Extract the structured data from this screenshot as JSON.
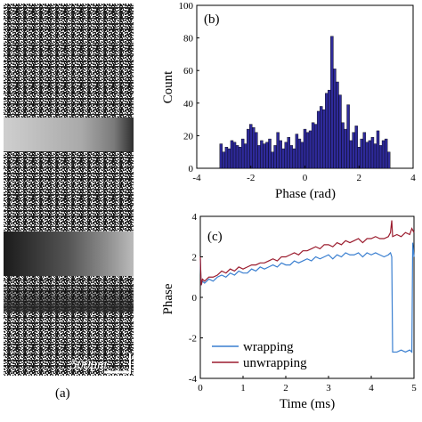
{
  "figure": {
    "panel_a": {
      "tag": "(a)",
      "scale_bar_label": "500μm",
      "description_colors": {
        "speckle_dark": "#1a1a1a",
        "speckle_light": "#e6e6e6"
      }
    }
  },
  "chart_data": [
    {
      "type": "bar",
      "panel": "(b)",
      "xlabel": "Phase (rad)",
      "ylabel": "Count",
      "xlim": [
        -4,
        4
      ],
      "ylim": [
        0,
        100
      ],
      "xticks": [
        "-4",
        "-2",
        "0",
        "2",
        "4"
      ],
      "yticks": [
        "0",
        "20",
        "40",
        "60",
        "80",
        "100"
      ],
      "bar_color": "#2e2a9a",
      "bin_width": 0.1,
      "x": [
        -3.1,
        -3.0,
        -2.9,
        -2.8,
        -2.7,
        -2.6,
        -2.5,
        -2.4,
        -2.3,
        -2.2,
        -2.1,
        -2.0,
        -1.9,
        -1.8,
        -1.7,
        -1.6,
        -1.5,
        -1.4,
        -1.3,
        -1.2,
        -1.1,
        -1.0,
        -0.9,
        -0.8,
        -0.7,
        -0.6,
        -0.5,
        -0.4,
        -0.3,
        -0.2,
        -0.1,
        0.0,
        0.1,
        0.2,
        0.3,
        0.4,
        0.5,
        0.6,
        0.7,
        0.8,
        0.9,
        1.0,
        1.1,
        1.2,
        1.3,
        1.4,
        1.5,
        1.6,
        1.7,
        1.8,
        1.9,
        2.0,
        2.1,
        2.2,
        2.3,
        2.4,
        2.5,
        2.6,
        2.7,
        2.8,
        2.9,
        3.0,
        3.1
      ],
      "values": [
        15,
        10,
        13,
        12,
        17,
        16,
        14,
        13,
        18,
        15,
        24,
        27,
        25,
        22,
        14,
        17,
        15,
        16,
        18,
        10,
        14,
        22,
        17,
        12,
        16,
        19,
        14,
        12,
        21,
        18,
        16,
        24,
        22,
        23,
        28,
        27,
        35,
        38,
        36,
        46,
        48,
        81,
        61,
        53,
        45,
        28,
        24,
        39,
        17,
        22,
        26,
        13,
        18,
        22,
        16,
        17,
        19,
        15,
        23,
        14,
        17,
        18,
        10
      ]
    },
    {
      "type": "line",
      "panel": "(c)",
      "xlabel": "Time (ms)",
      "ylabel": "Phase",
      "xlim": [
        0,
        5
      ],
      "ylim": [
        -4,
        4
      ],
      "xticks": [
        "0",
        "1",
        "2",
        "3",
        "4",
        "5"
      ],
      "yticks": [
        "-4",
        "-2",
        "0",
        "2",
        "4"
      ],
      "legend_position": "bottom-left",
      "series": [
        {
          "name": "wrapping",
          "color": "#3a7fd0",
          "x": [
            0,
            0.02,
            0.05,
            0.1,
            0.2,
            0.3,
            0.4,
            0.5,
            0.6,
            0.7,
            0.8,
            0.9,
            1.0,
            1.1,
            1.2,
            1.3,
            1.4,
            1.5,
            1.6,
            1.7,
            1.8,
            1.9,
            2.0,
            2.1,
            2.2,
            2.3,
            2.4,
            2.5,
            2.6,
            2.7,
            2.8,
            2.9,
            3.0,
            3.1,
            3.2,
            3.3,
            3.4,
            3.5,
            3.6,
            3.7,
            3.8,
            3.9,
            4.0,
            4.1,
            4.2,
            4.3,
            4.4,
            4.45,
            4.48,
            4.5,
            4.6,
            4.7,
            4.8,
            4.9,
            4.95,
            4.97,
            5.0
          ],
          "y": [
            1.9,
            0.6,
            0.8,
            0.7,
            0.9,
            0.8,
            1.0,
            1.1,
            1.0,
            1.2,
            1.1,
            1.3,
            1.2,
            1.2,
            1.4,
            1.3,
            1.5,
            1.4,
            1.5,
            1.6,
            1.5,
            1.7,
            1.6,
            1.6,
            1.8,
            1.7,
            1.8,
            1.9,
            1.8,
            2.0,
            1.9,
            2.0,
            2.1,
            1.9,
            2.1,
            2.0,
            2.2,
            2.1,
            2.1,
            2.2,
            2.0,
            2.2,
            2.1,
            2.2,
            2.1,
            2.0,
            2.1,
            2.2,
            2.0,
            -2.7,
            -2.7,
            -2.6,
            -2.7,
            -2.6,
            -2.7,
            2.7,
            2.0
          ]
        },
        {
          "name": "unwrapping",
          "color": "#9b1c2e",
          "x": [
            0,
            0.02,
            0.05,
            0.1,
            0.2,
            0.3,
            0.4,
            0.5,
            0.6,
            0.7,
            0.8,
            0.9,
            1.0,
            1.1,
            1.2,
            1.3,
            1.4,
            1.5,
            1.6,
            1.7,
            1.8,
            1.9,
            2.0,
            2.1,
            2.2,
            2.3,
            2.4,
            2.5,
            2.6,
            2.7,
            2.8,
            2.9,
            3.0,
            3.1,
            3.2,
            3.3,
            3.4,
            3.5,
            3.6,
            3.7,
            3.8,
            3.9,
            4.0,
            4.1,
            4.2,
            4.3,
            4.4,
            4.45,
            4.48,
            4.5,
            4.6,
            4.7,
            4.8,
            4.9,
            4.95,
            5.0
          ],
          "y": [
            2.0,
            0.6,
            0.9,
            0.8,
            1.0,
            1.0,
            1.1,
            1.3,
            1.2,
            1.4,
            1.3,
            1.5,
            1.4,
            1.5,
            1.6,
            1.6,
            1.7,
            1.7,
            1.8,
            1.9,
            1.8,
            2.0,
            2.0,
            2.1,
            2.2,
            2.1,
            2.3,
            2.3,
            2.4,
            2.5,
            2.4,
            2.6,
            2.6,
            2.5,
            2.7,
            2.6,
            2.8,
            2.7,
            2.8,
            2.9,
            2.7,
            2.9,
            2.9,
            3.0,
            2.9,
            2.9,
            3.0,
            3.2,
            3.8,
            3.0,
            3.1,
            3.0,
            3.2,
            3.1,
            3.4,
            3.2
          ]
        }
      ]
    }
  ]
}
